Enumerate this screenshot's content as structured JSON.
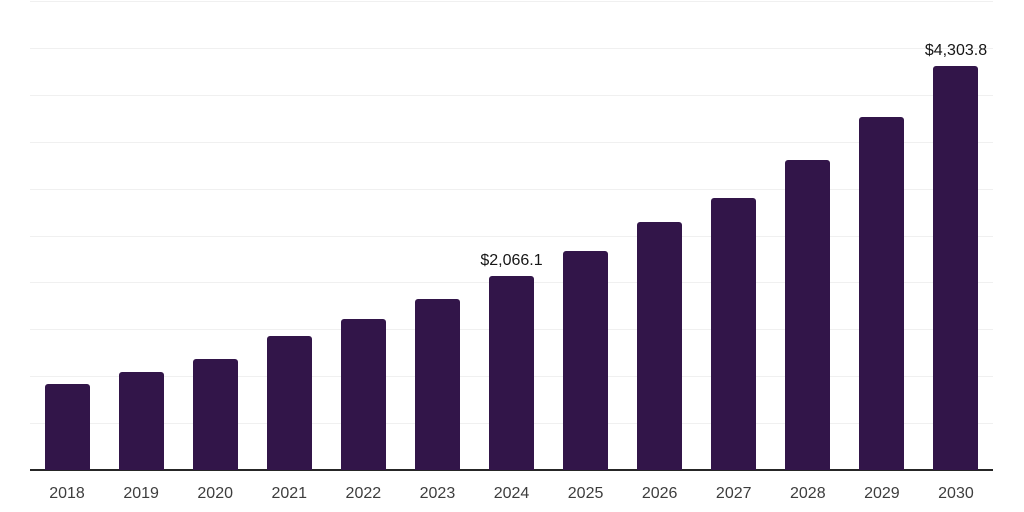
{
  "chart_data": {
    "type": "bar",
    "title": "",
    "xlabel": "",
    "ylabel": "",
    "categories": [
      "2018",
      "2019",
      "2020",
      "2021",
      "2022",
      "2023",
      "2024",
      "2025",
      "2026",
      "2027",
      "2028",
      "2029",
      "2030"
    ],
    "values": [
      915,
      1040,
      1180,
      1430,
      1610,
      1820,
      2066.1,
      2340,
      2640,
      2900,
      3300,
      3765,
      4303.8
    ],
    "data_labels": [
      null,
      null,
      null,
      null,
      null,
      null,
      "$2,066.1",
      null,
      null,
      null,
      null,
      null,
      "$4,303.8"
    ],
    "ylim": [
      0,
      5000
    ],
    "grid_interval": 500,
    "grid": "horizontal-only",
    "legend_position": "none",
    "y_axis_ticks_visible": false,
    "currency_format": "$#,##0.0"
  },
  "style_colors": {
    "bar_color": "#321549",
    "gridline_color": "#f0f0f0",
    "axis_line_color": "#262626",
    "value_label_color": "#161616",
    "tick_label_color": "#3d3d3d",
    "background_color": "#ffffff"
  }
}
